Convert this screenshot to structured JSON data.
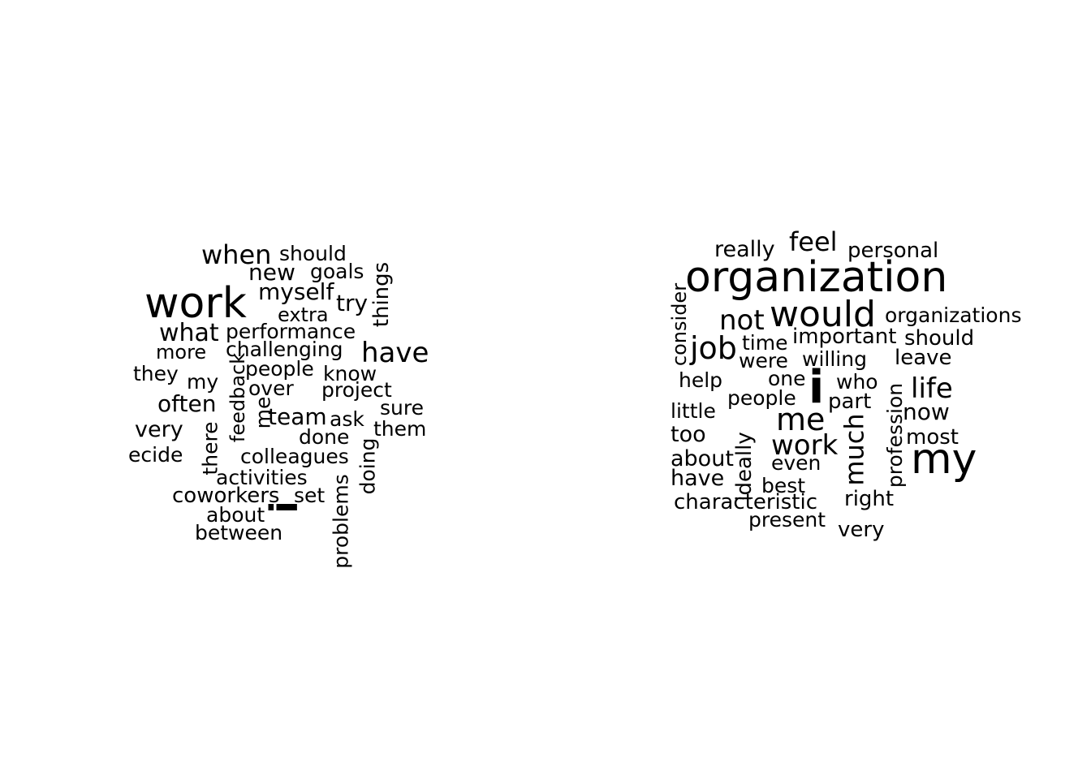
{
  "colors": {
    "background": "#ffffff",
    "text": "#000000"
  },
  "left_cloud": {
    "words": [
      "work",
      "when",
      "should",
      "new",
      "goals",
      "myself",
      "try",
      "things",
      "extra",
      "what",
      "performance",
      "more",
      "challenging",
      "have",
      "they",
      "people",
      "know",
      "my",
      "over",
      "project",
      "often",
      "feedback",
      "me",
      "team",
      "sure",
      "ask",
      "very",
      "them",
      "done",
      "there",
      "ecide",
      "colleagues",
      "doing",
      "activities",
      "coworkers",
      "set",
      "problems",
      "about",
      "i",
      "between"
    ]
  },
  "right_cloud": {
    "words": [
      "really",
      "feel",
      "personal",
      "organization",
      "consider",
      "would",
      "not",
      "organizations",
      "job",
      "time",
      "important",
      "should",
      "were",
      "willing",
      "leave",
      "help",
      "one",
      "who",
      "life",
      "i",
      "part",
      "people",
      "little",
      "now",
      "profession",
      "me",
      "too",
      "much",
      "most",
      "about",
      "ideally",
      "work",
      "my",
      "even",
      "have",
      "best",
      "characteristic",
      "right",
      "present",
      "very"
    ]
  }
}
